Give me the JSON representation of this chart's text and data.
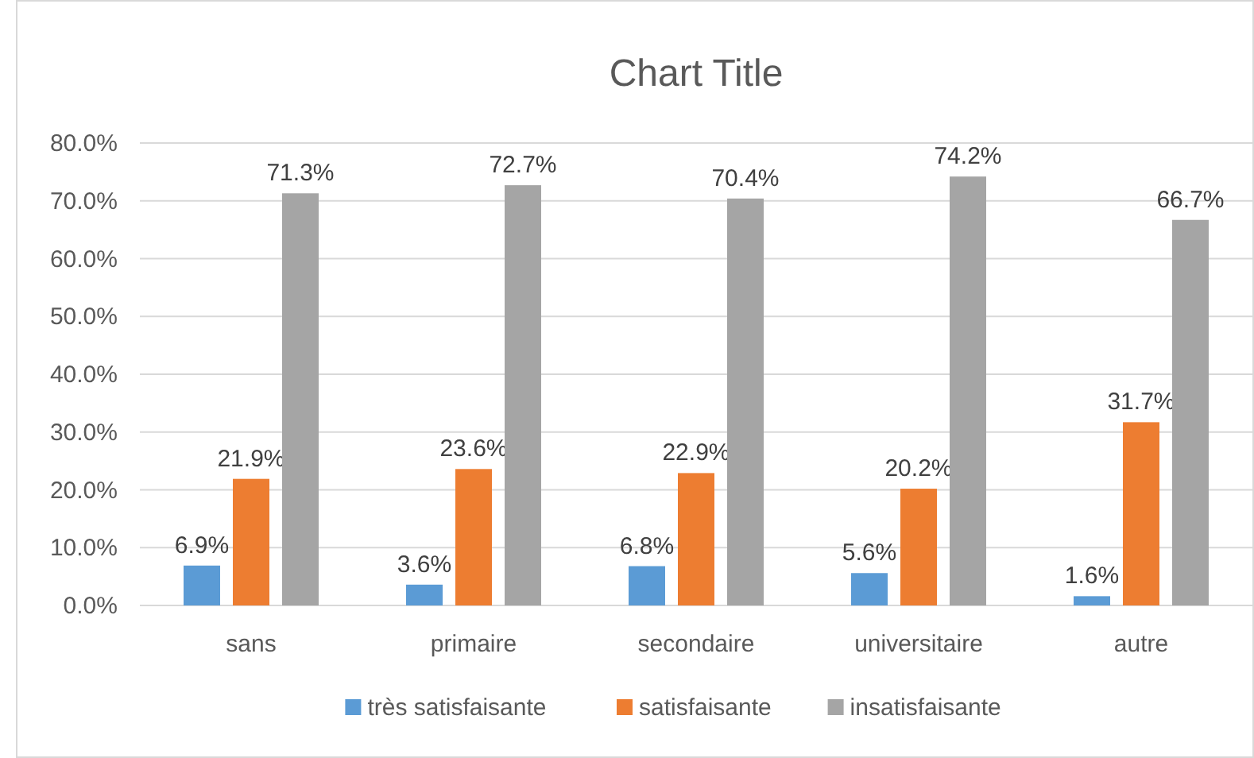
{
  "chart_data": {
    "type": "bar",
    "title": "Chart Title",
    "categories": [
      "sans",
      "primaire",
      "secondaire",
      "universitaire",
      "autre"
    ],
    "series": [
      {
        "name": "très satisfaisante",
        "color": "#5b9bd5",
        "values": [
          6.9,
          3.6,
          6.8,
          5.6,
          1.6
        ],
        "value_labels": [
          "6.9%",
          "3.6%",
          "6.8%",
          "5.6%",
          "1.6%"
        ]
      },
      {
        "name": "satisfaisante",
        "color": "#ed7d31",
        "values": [
          21.9,
          23.6,
          22.9,
          20.2,
          31.7
        ],
        "value_labels": [
          "21.9%",
          "23.6%",
          "22.9%",
          "20.2%",
          "31.7%"
        ]
      },
      {
        "name": "insatisfaisante",
        "color": "#a5a5a5",
        "values": [
          71.3,
          72.7,
          70.4,
          74.2,
          66.7
        ],
        "value_labels": [
          "71.3%",
          "72.7%",
          "70.4%",
          "74.2%",
          "66.7%"
        ]
      }
    ],
    "ylim": [
      0,
      80
    ],
    "yticks": [
      {
        "value": 0,
        "label": "0.0%"
      },
      {
        "value": 10,
        "label": "10.0%"
      },
      {
        "value": 20,
        "label": "20.0%"
      },
      {
        "value": 30,
        "label": "30.0%"
      },
      {
        "value": 40,
        "label": "40.0%"
      },
      {
        "value": 50,
        "label": "50.0%"
      },
      {
        "value": 60,
        "label": "60.0%"
      },
      {
        "value": 70,
        "label": "70.0%"
      },
      {
        "value": 80,
        "label": "80.0%"
      }
    ],
    "grid": "y",
    "legend": "bottom"
  }
}
